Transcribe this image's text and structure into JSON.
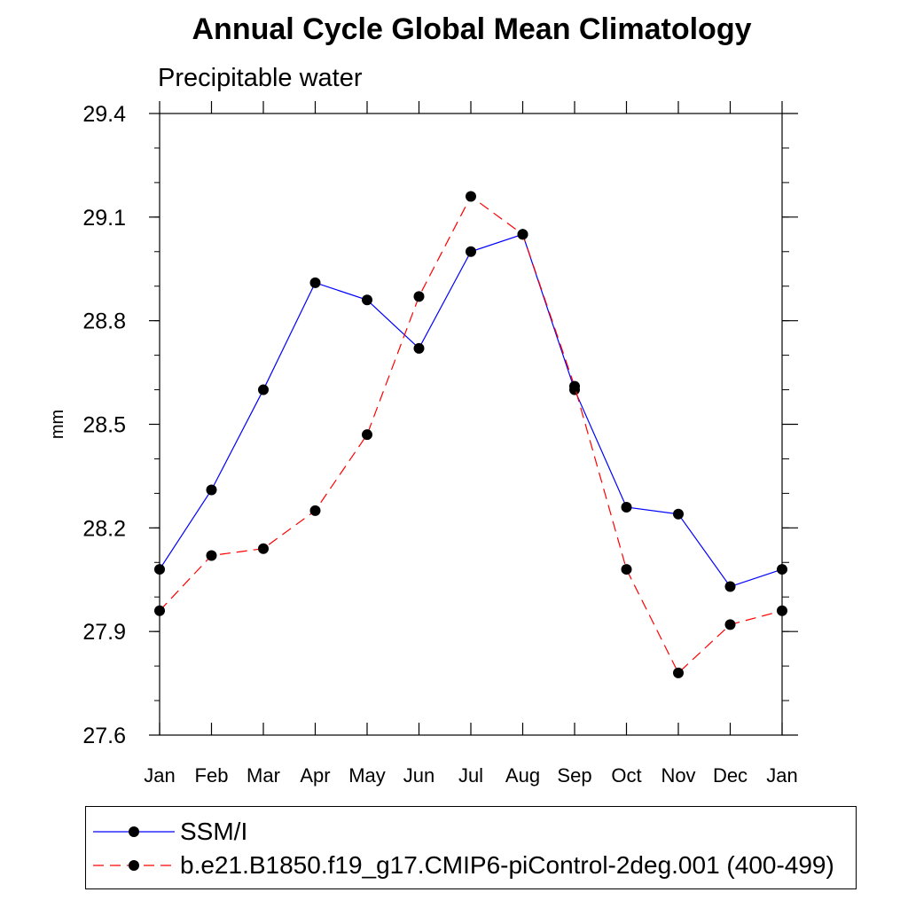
{
  "chart_data": {
    "type": "line",
    "title": "Annual Cycle Global Mean Climatology",
    "subtitle": "Precipitable water",
    "xlabel": "",
    "ylabel": "mm",
    "categories": [
      "Jan",
      "Feb",
      "Mar",
      "Apr",
      "May",
      "Jun",
      "Jul",
      "Aug",
      "Sep",
      "Oct",
      "Nov",
      "Dec",
      "Jan"
    ],
    "ylim": [
      27.6,
      29.4
    ],
    "yticks": [
      "29.4",
      "29.1",
      "28.8",
      "28.5",
      "28.2",
      "27.9",
      "27.6"
    ],
    "legend_position": "bottom",
    "series": [
      {
        "name": "SSM/I",
        "color": "#0000ff",
        "style": "solid",
        "values": [
          28.08,
          28.31,
          28.6,
          28.91,
          28.86,
          28.72,
          29.0,
          29.05,
          28.6,
          28.26,
          28.24,
          28.03,
          28.08
        ]
      },
      {
        "name": "b.e21.B1850.f19_g17.CMIP6-piControl-2deg.001 (400-499)",
        "color": "#ff0000",
        "style": "dashed",
        "values": [
          27.96,
          28.12,
          28.14,
          28.25,
          28.47,
          28.87,
          29.16,
          29.05,
          28.61,
          28.08,
          27.78,
          27.92,
          27.96
        ]
      }
    ]
  }
}
